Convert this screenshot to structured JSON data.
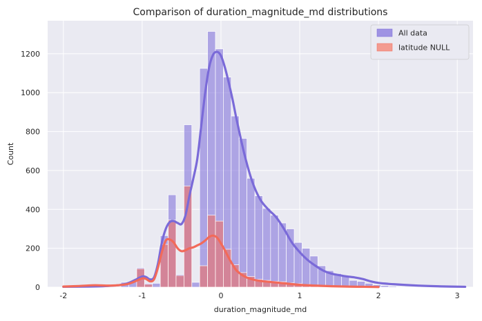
{
  "chart_data": {
    "type": "histogram",
    "title": "Comparison of duration_magnitude_md distributions",
    "xlabel": "duration_magnitude_md",
    "ylabel": "Count",
    "xlim": [
      -2.2,
      3.2
    ],
    "ylim": [
      0,
      1370
    ],
    "x_ticks": [
      -2,
      -1,
      0,
      1,
      2,
      3
    ],
    "y_ticks": [
      0,
      200,
      400,
      600,
      800,
      1000,
      1200
    ],
    "grid": true,
    "legend_position": "top-right",
    "series": [
      {
        "name": "All data",
        "color": "#7a6ad8",
        "bars": [
          {
            "x0": -1.27,
            "x1": -1.17,
            "y": 25
          },
          {
            "x0": -1.17,
            "x1": -1.07,
            "y": 30
          },
          {
            "x0": -1.07,
            "x1": -0.97,
            "y": 100
          },
          {
            "x0": -0.97,
            "x1": -0.87,
            "y": 20
          },
          {
            "x0": -0.87,
            "x1": -0.77,
            "y": 20
          },
          {
            "x0": -0.77,
            "x1": -0.67,
            "y": 265
          },
          {
            "x0": -0.67,
            "x1": -0.57,
            "y": 475
          },
          {
            "x0": -0.57,
            "x1": -0.47,
            "y": 65
          },
          {
            "x0": -0.47,
            "x1": -0.37,
            "y": 835
          },
          {
            "x0": -0.37,
            "x1": -0.27,
            "y": 25
          },
          {
            "x0": -0.27,
            "x1": -0.17,
            "y": 1125
          },
          {
            "x0": -0.17,
            "x1": -0.07,
            "y": 1315
          },
          {
            "x0": -0.07,
            "x1": 0.03,
            "y": 1225
          },
          {
            "x0": 0.03,
            "x1": 0.13,
            "y": 1080
          },
          {
            "x0": 0.13,
            "x1": 0.23,
            "y": 880
          },
          {
            "x0": 0.23,
            "x1": 0.33,
            "y": 765
          },
          {
            "x0": 0.33,
            "x1": 0.43,
            "y": 560
          },
          {
            "x0": 0.43,
            "x1": 0.53,
            "y": 470
          },
          {
            "x0": 0.53,
            "x1": 0.63,
            "y": 405
          },
          {
            "x0": 0.63,
            "x1": 0.73,
            "y": 370
          },
          {
            "x0": 0.73,
            "x1": 0.83,
            "y": 330
          },
          {
            "x0": 0.83,
            "x1": 0.93,
            "y": 300
          },
          {
            "x0": 0.93,
            "x1": 1.03,
            "y": 230
          },
          {
            "x0": 1.03,
            "x1": 1.13,
            "y": 200
          },
          {
            "x0": 1.13,
            "x1": 1.23,
            "y": 160
          },
          {
            "x0": 1.23,
            "x1": 1.33,
            "y": 110
          },
          {
            "x0": 1.33,
            "x1": 1.43,
            "y": 85
          },
          {
            "x0": 1.43,
            "x1": 1.53,
            "y": 70
          },
          {
            "x0": 1.53,
            "x1": 1.63,
            "y": 60
          },
          {
            "x0": 1.63,
            "x1": 1.73,
            "y": 35
          },
          {
            "x0": 1.73,
            "x1": 1.83,
            "y": 30
          },
          {
            "x0": 1.83,
            "x1": 1.93,
            "y": 20
          },
          {
            "x0": 1.93,
            "x1": 2.03,
            "y": 12
          },
          {
            "x0": 2.03,
            "x1": 2.13,
            "y": 8
          },
          {
            "x0": 2.13,
            "x1": 2.23,
            "y": 5
          },
          {
            "x0": 2.23,
            "x1": 2.33,
            "y": 3
          }
        ],
        "kde": [
          [
            -2.0,
            2
          ],
          [
            -1.7,
            3
          ],
          [
            -1.5,
            5
          ],
          [
            -1.3,
            10
          ],
          [
            -1.2,
            18
          ],
          [
            -1.1,
            35
          ],
          [
            -1.0,
            55
          ],
          [
            -0.95,
            52
          ],
          [
            -0.9,
            40
          ],
          [
            -0.85,
            50
          ],
          [
            -0.8,
            120
          ],
          [
            -0.75,
            230
          ],
          [
            -0.7,
            300
          ],
          [
            -0.65,
            335
          ],
          [
            -0.6,
            340
          ],
          [
            -0.55,
            330
          ],
          [
            -0.5,
            325
          ],
          [
            -0.45,
            370
          ],
          [
            -0.4,
            470
          ],
          [
            -0.35,
            560
          ],
          [
            -0.3,
            660
          ],
          [
            -0.25,
            830
          ],
          [
            -0.2,
            1000
          ],
          [
            -0.15,
            1130
          ],
          [
            -0.1,
            1195
          ],
          [
            -0.05,
            1210
          ],
          [
            0.0,
            1190
          ],
          [
            0.05,
            1130
          ],
          [
            0.1,
            1050
          ],
          [
            0.15,
            960
          ],
          [
            0.2,
            860
          ],
          [
            0.3,
            680
          ],
          [
            0.4,
            540
          ],
          [
            0.5,
            450
          ],
          [
            0.6,
            400
          ],
          [
            0.7,
            360
          ],
          [
            0.8,
            300
          ],
          [
            0.9,
            230
          ],
          [
            1.0,
            180
          ],
          [
            1.1,
            140
          ],
          [
            1.2,
            110
          ],
          [
            1.3,
            85
          ],
          [
            1.4,
            70
          ],
          [
            1.5,
            62
          ],
          [
            1.6,
            55
          ],
          [
            1.7,
            50
          ],
          [
            1.8,
            42
          ],
          [
            1.9,
            30
          ],
          [
            2.0,
            22
          ],
          [
            2.2,
            15
          ],
          [
            2.5,
            8
          ],
          [
            2.8,
            4
          ],
          [
            3.1,
            2
          ]
        ]
      },
      {
        "name": "latitude NULL",
        "color": "#f26a5a",
        "bars": [
          {
            "x0": -1.07,
            "x1": -0.97,
            "y": 95
          },
          {
            "x0": -0.97,
            "x1": -0.87,
            "y": 15
          },
          {
            "x0": -0.77,
            "x1": -0.67,
            "y": 220
          },
          {
            "x0": -0.67,
            "x1": -0.57,
            "y": 345
          },
          {
            "x0": -0.57,
            "x1": -0.47,
            "y": 60
          },
          {
            "x0": -0.47,
            "x1": -0.37,
            "y": 520
          },
          {
            "x0": -0.27,
            "x1": -0.17,
            "y": 110
          },
          {
            "x0": -0.17,
            "x1": -0.07,
            "y": 370
          },
          {
            "x0": -0.07,
            "x1": 0.03,
            "y": 340
          },
          {
            "x0": 0.03,
            "x1": 0.13,
            "y": 195
          },
          {
            "x0": 0.13,
            "x1": 0.23,
            "y": 115
          },
          {
            "x0": 0.23,
            "x1": 0.33,
            "y": 75
          },
          {
            "x0": 0.33,
            "x1": 0.43,
            "y": 55
          },
          {
            "x0": 0.43,
            "x1": 0.53,
            "y": 40
          },
          {
            "x0": 0.53,
            "x1": 0.63,
            "y": 35
          },
          {
            "x0": 0.63,
            "x1": 0.73,
            "y": 30
          },
          {
            "x0": 0.73,
            "x1": 0.83,
            "y": 28
          },
          {
            "x0": 0.83,
            "x1": 0.93,
            "y": 22
          },
          {
            "x0": 0.93,
            "x1": 1.03,
            "y": 18
          },
          {
            "x0": 1.03,
            "x1": 1.13,
            "y": 14
          },
          {
            "x0": 1.13,
            "x1": 1.23,
            "y": 10
          },
          {
            "x0": 1.23,
            "x1": 1.33,
            "y": 8
          },
          {
            "x0": 1.33,
            "x1": 1.43,
            "y": 6
          },
          {
            "x0": 1.63,
            "x1": 1.73,
            "y": 4
          },
          {
            "x0": 1.73,
            "x1": 1.83,
            "y": 3
          }
        ],
        "kde": [
          [
            -2.0,
            3
          ],
          [
            -1.8,
            6
          ],
          [
            -1.6,
            10
          ],
          [
            -1.4,
            8
          ],
          [
            -1.2,
            15
          ],
          [
            -1.1,
            28
          ],
          [
            -1.0,
            45
          ],
          [
            -0.95,
            42
          ],
          [
            -0.9,
            30
          ],
          [
            -0.85,
            40
          ],
          [
            -0.8,
            100
          ],
          [
            -0.75,
            180
          ],
          [
            -0.7,
            240
          ],
          [
            -0.65,
            245
          ],
          [
            -0.6,
            230
          ],
          [
            -0.55,
            200
          ],
          [
            -0.5,
            185
          ],
          [
            -0.45,
            190
          ],
          [
            -0.4,
            200
          ],
          [
            -0.35,
            205
          ],
          [
            -0.3,
            215
          ],
          [
            -0.25,
            225
          ],
          [
            -0.2,
            240
          ],
          [
            -0.15,
            258
          ],
          [
            -0.1,
            265
          ],
          [
            -0.05,
            255
          ],
          [
            0.0,
            225
          ],
          [
            0.05,
            190
          ],
          [
            0.1,
            150
          ],
          [
            0.15,
            115
          ],
          [
            0.2,
            85
          ],
          [
            0.3,
            55
          ],
          [
            0.4,
            40
          ],
          [
            0.5,
            32
          ],
          [
            0.6,
            28
          ],
          [
            0.7,
            24
          ],
          [
            0.8,
            20
          ],
          [
            0.9,
            16
          ],
          [
            1.0,
            12
          ],
          [
            1.2,
            8
          ],
          [
            1.4,
            5
          ],
          [
            1.6,
            3
          ],
          [
            1.8,
            2
          ],
          [
            2.0,
            1
          ]
        ]
      }
    ]
  }
}
